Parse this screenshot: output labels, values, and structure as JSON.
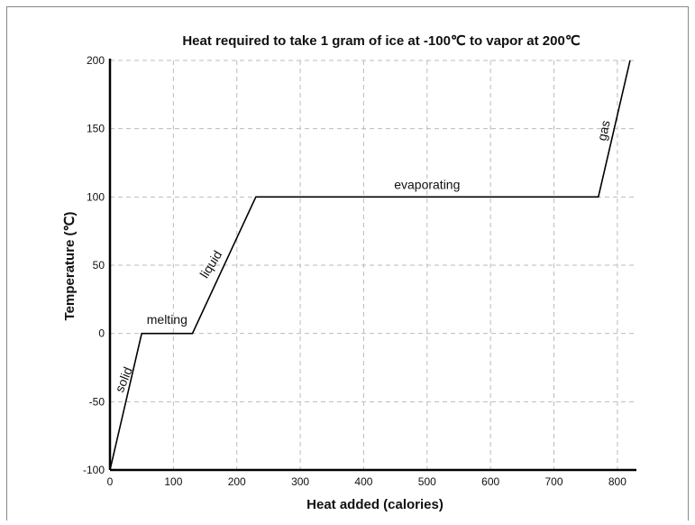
{
  "chart_data": {
    "type": "line",
    "title": "Heat required to take 1 gram of ice at -100℃ to vapor at 200℃",
    "xlabel": "Heat added (calories)",
    "ylabel": "Temperature (℃)",
    "xlim": [
      0,
      830
    ],
    "ylim": [
      -100,
      200
    ],
    "xticks": [
      0,
      100,
      200,
      300,
      400,
      500,
      600,
      700,
      800
    ],
    "yticks": [
      -100,
      -50,
      0,
      50,
      100,
      150,
      200
    ],
    "grid": true,
    "series": [
      {
        "x": [
          0,
          50,
          130,
          230,
          770,
          820
        ],
        "y": [
          -100,
          0,
          0,
          100,
          100,
          200
        ]
      }
    ],
    "annotations": [
      {
        "text": "solid",
        "x": 28,
        "y": -35,
        "angle": -68
      },
      {
        "text": "melting",
        "x": 90,
        "y": 7,
        "angle": 0
      },
      {
        "text": "liquid",
        "x": 165,
        "y": 49,
        "angle": -58
      },
      {
        "text": "evaporating",
        "x": 500,
        "y": 106,
        "angle": 0
      },
      {
        "text": "gas",
        "x": 785,
        "y": 148,
        "angle": -78
      }
    ],
    "colors": {
      "line": "#000000",
      "grid": "#bbbbbb",
      "axis": "#000000",
      "frame": "#888888"
    }
  }
}
